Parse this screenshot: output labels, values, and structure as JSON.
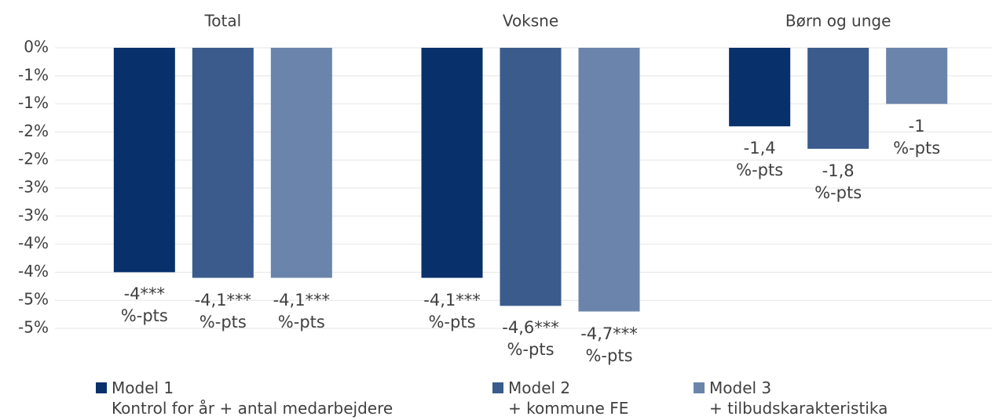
{
  "chart_data": {
    "type": "bar",
    "categories": [
      "Total",
      "Voksne",
      "Børn og unge"
    ],
    "series": [
      {
        "name": "Model 1\nKontrol for år + antal medarbejdere",
        "color": "#08306b",
        "values": [
          -4,
          -4.1,
          -1.4
        ],
        "value_labels": [
          "-4***\n%-pts",
          "-4,1***\n%-pts",
          "-1,4\n%-pts"
        ]
      },
      {
        "name": "Model 2\n+ kommune FE",
        "color": "#3a5b8c",
        "values": [
          -4.1,
          -4.6,
          -1.8
        ],
        "value_labels": [
          "-4,1***\n%-pts",
          "-4,6***\n%-pts",
          "-1,8\n%-pts"
        ]
      },
      {
        "name": "Model 3\n+ tilbudskarakteristika",
        "color": "#6b84ab",
        "values": [
          -4.1,
          -4.7,
          -1
        ],
        "value_labels": [
          "-4,1***\n%-pts",
          "-4,7***\n%-pts",
          "-1\n%-pts"
        ]
      }
    ],
    "ylim": [
      -5,
      0
    ],
    "yticks": [
      {
        "value": 0,
        "label": "0%"
      },
      {
        "value": -0.5,
        "label": "-1%"
      },
      {
        "value": -1,
        "label": "-1%"
      },
      {
        "value": -1.5,
        "label": "-2%"
      },
      {
        "value": -2,
        "label": "-2%"
      },
      {
        "value": -2.5,
        "label": "-3%"
      },
      {
        "value": -3,
        "label": "-3%"
      },
      {
        "value": -3.5,
        "label": "-4%"
      },
      {
        "value": -4,
        "label": "-4%"
      },
      {
        "value": -4.5,
        "label": "-5%"
      },
      {
        "value": -5,
        "label": "-5%"
      }
    ],
    "grid": true,
    "legend": "bottom"
  }
}
